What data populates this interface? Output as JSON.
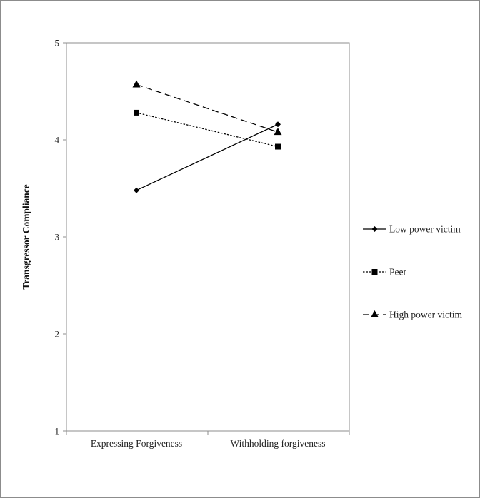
{
  "chart_data": {
    "type": "line",
    "categories": [
      "Expressing Forgiveness",
      "Withholding forgiveness"
    ],
    "ylabel": "Transgressor Compliance",
    "xlabel": "",
    "ylim": [
      1,
      5
    ],
    "yticks": [
      "1",
      "2",
      "3",
      "4",
      "5"
    ],
    "grid": false,
    "legend_position": "right",
    "series": [
      {
        "name": "Low power victim",
        "values": [
          3.48,
          4.16
        ],
        "marker": "diamond",
        "dash": "solid",
        "color": "#000000"
      },
      {
        "name": "Peer",
        "values": [
          4.28,
          3.93
        ],
        "marker": "square",
        "dash": "dotted",
        "color": "#000000"
      },
      {
        "name": "High power victim",
        "values": [
          4.57,
          4.08
        ],
        "marker": "triangle",
        "dash": "dashed",
        "color": "#000000"
      }
    ]
  }
}
